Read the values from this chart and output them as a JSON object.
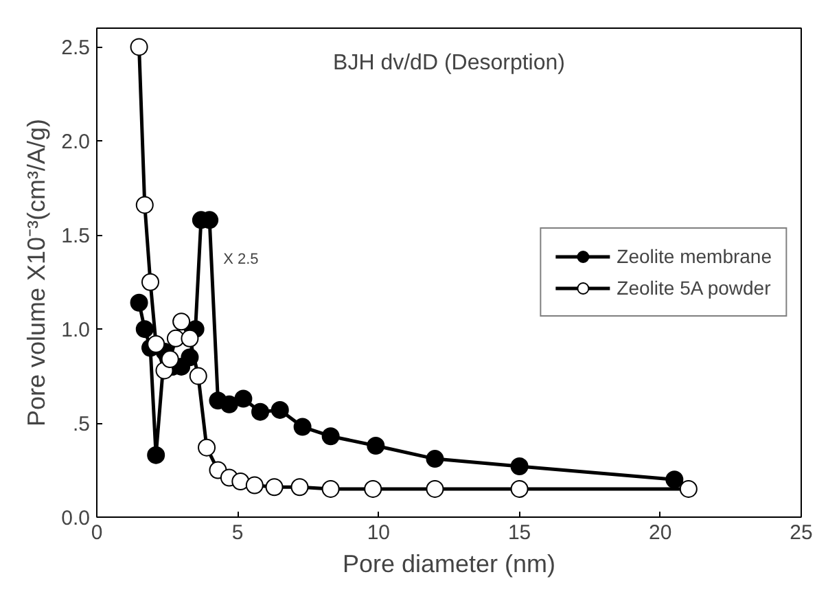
{
  "chart_data": {
    "type": "line",
    "xlabel": "Pore diameter (nm)",
    "ylabel": "Pore volume X10⁻³(cm³/A/g)",
    "annotations": [
      "BJH dv/dD (Desorption)",
      "X 2.5"
    ],
    "xlim": [
      0,
      25
    ],
    "xticks": [
      0,
      5,
      10,
      15,
      20,
      25
    ],
    "ylim": [
      0,
      2.6
    ],
    "yticks": [
      {
        "value": 0,
        "label": "0.0"
      },
      {
        "value": 0.5,
        "label": ".5"
      },
      {
        "value": 1,
        "label": "1.0"
      },
      {
        "value": 1.5,
        "label": "1.5"
      },
      {
        "value": 2,
        "label": "2.0"
      },
      {
        "value": 2.5,
        "label": "2.5"
      }
    ],
    "grid": false,
    "legend": "right",
    "marker": "circle",
    "line_style": "solid",
    "series": [
      {
        "name": "Zeolite membrane",
        "color": "#000000",
        "x": [
          1.5,
          1.7,
          1.9,
          2.1,
          2.4,
          2.7,
          3.0,
          3.3,
          3.5,
          3.7,
          4.0,
          4.3,
          4.7,
          5.2,
          5.8,
          6.5,
          7.3,
          8.3,
          9.9,
          12.0,
          15.0,
          20.5
        ],
        "values": [
          1.14,
          1.0,
          0.9,
          0.33,
          0.88,
          0.8,
          0.8,
          0.85,
          1.0,
          1.58,
          1.58,
          0.62,
          0.6,
          0.63,
          0.56,
          0.57,
          0.48,
          0.43,
          0.38,
          0.31,
          0.27,
          0.2
        ]
      },
      {
        "name": "Zeolite 5A powder",
        "color": "#000000",
        "x": [
          1.5,
          1.7,
          1.9,
          2.1,
          2.4,
          2.6,
          2.8,
          3.0,
          3.3,
          3.6,
          3.9,
          4.3,
          4.7,
          5.1,
          5.6,
          6.3,
          7.2,
          8.3,
          9.8,
          12.0,
          15.0,
          21.0
        ],
        "values": [
          2.5,
          1.66,
          1.25,
          0.92,
          0.78,
          0.84,
          0.95,
          1.04,
          0.95,
          0.75,
          0.37,
          0.25,
          0.21,
          0.19,
          0.17,
          0.16,
          0.16,
          0.15,
          0.15,
          0.15,
          0.15,
          0.15
        ]
      }
    ]
  }
}
